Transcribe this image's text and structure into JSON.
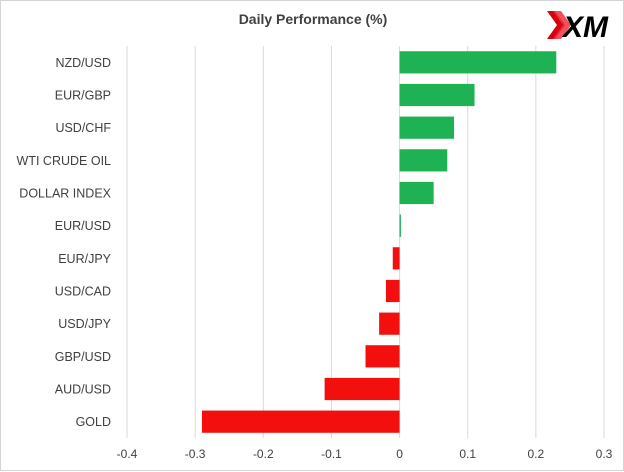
{
  "logo": {
    "text": "XM"
  },
  "chart_data": {
    "type": "bar",
    "orientation": "horizontal",
    "title": "Daily Performance  (%)",
    "categories": [
      "NZD/USD",
      "EUR/GBP",
      "USD/CHF",
      "WTI CRUDE OIL",
      "DOLLAR INDEX",
      "EUR/USD",
      "EUR/JPY",
      "USD/CAD",
      "USD/JPY",
      "GBP/USD",
      "AUD/USD",
      "GOLD"
    ],
    "values": [
      0.23,
      0.11,
      0.08,
      0.07,
      0.05,
      0.002,
      -0.01,
      -0.02,
      -0.03,
      -0.05,
      -0.11,
      -0.29
    ],
    "xlim": [
      -0.4,
      0.3
    ],
    "xticks": [
      -0.4,
      -0.3,
      -0.2,
      -0.1,
      0,
      0.1,
      0.2,
      0.3
    ],
    "xtick_labels": [
      "-0.4",
      "-0.3",
      "-0.2",
      "-0.1",
      "0",
      "0.1",
      "0.2",
      "0.3"
    ],
    "grid": "vertical",
    "legend": "none",
    "colors": {
      "positive": "#1fb255",
      "negative": "#f40f0f",
      "grid": "#d9d9d9",
      "text": "#404040"
    }
  }
}
